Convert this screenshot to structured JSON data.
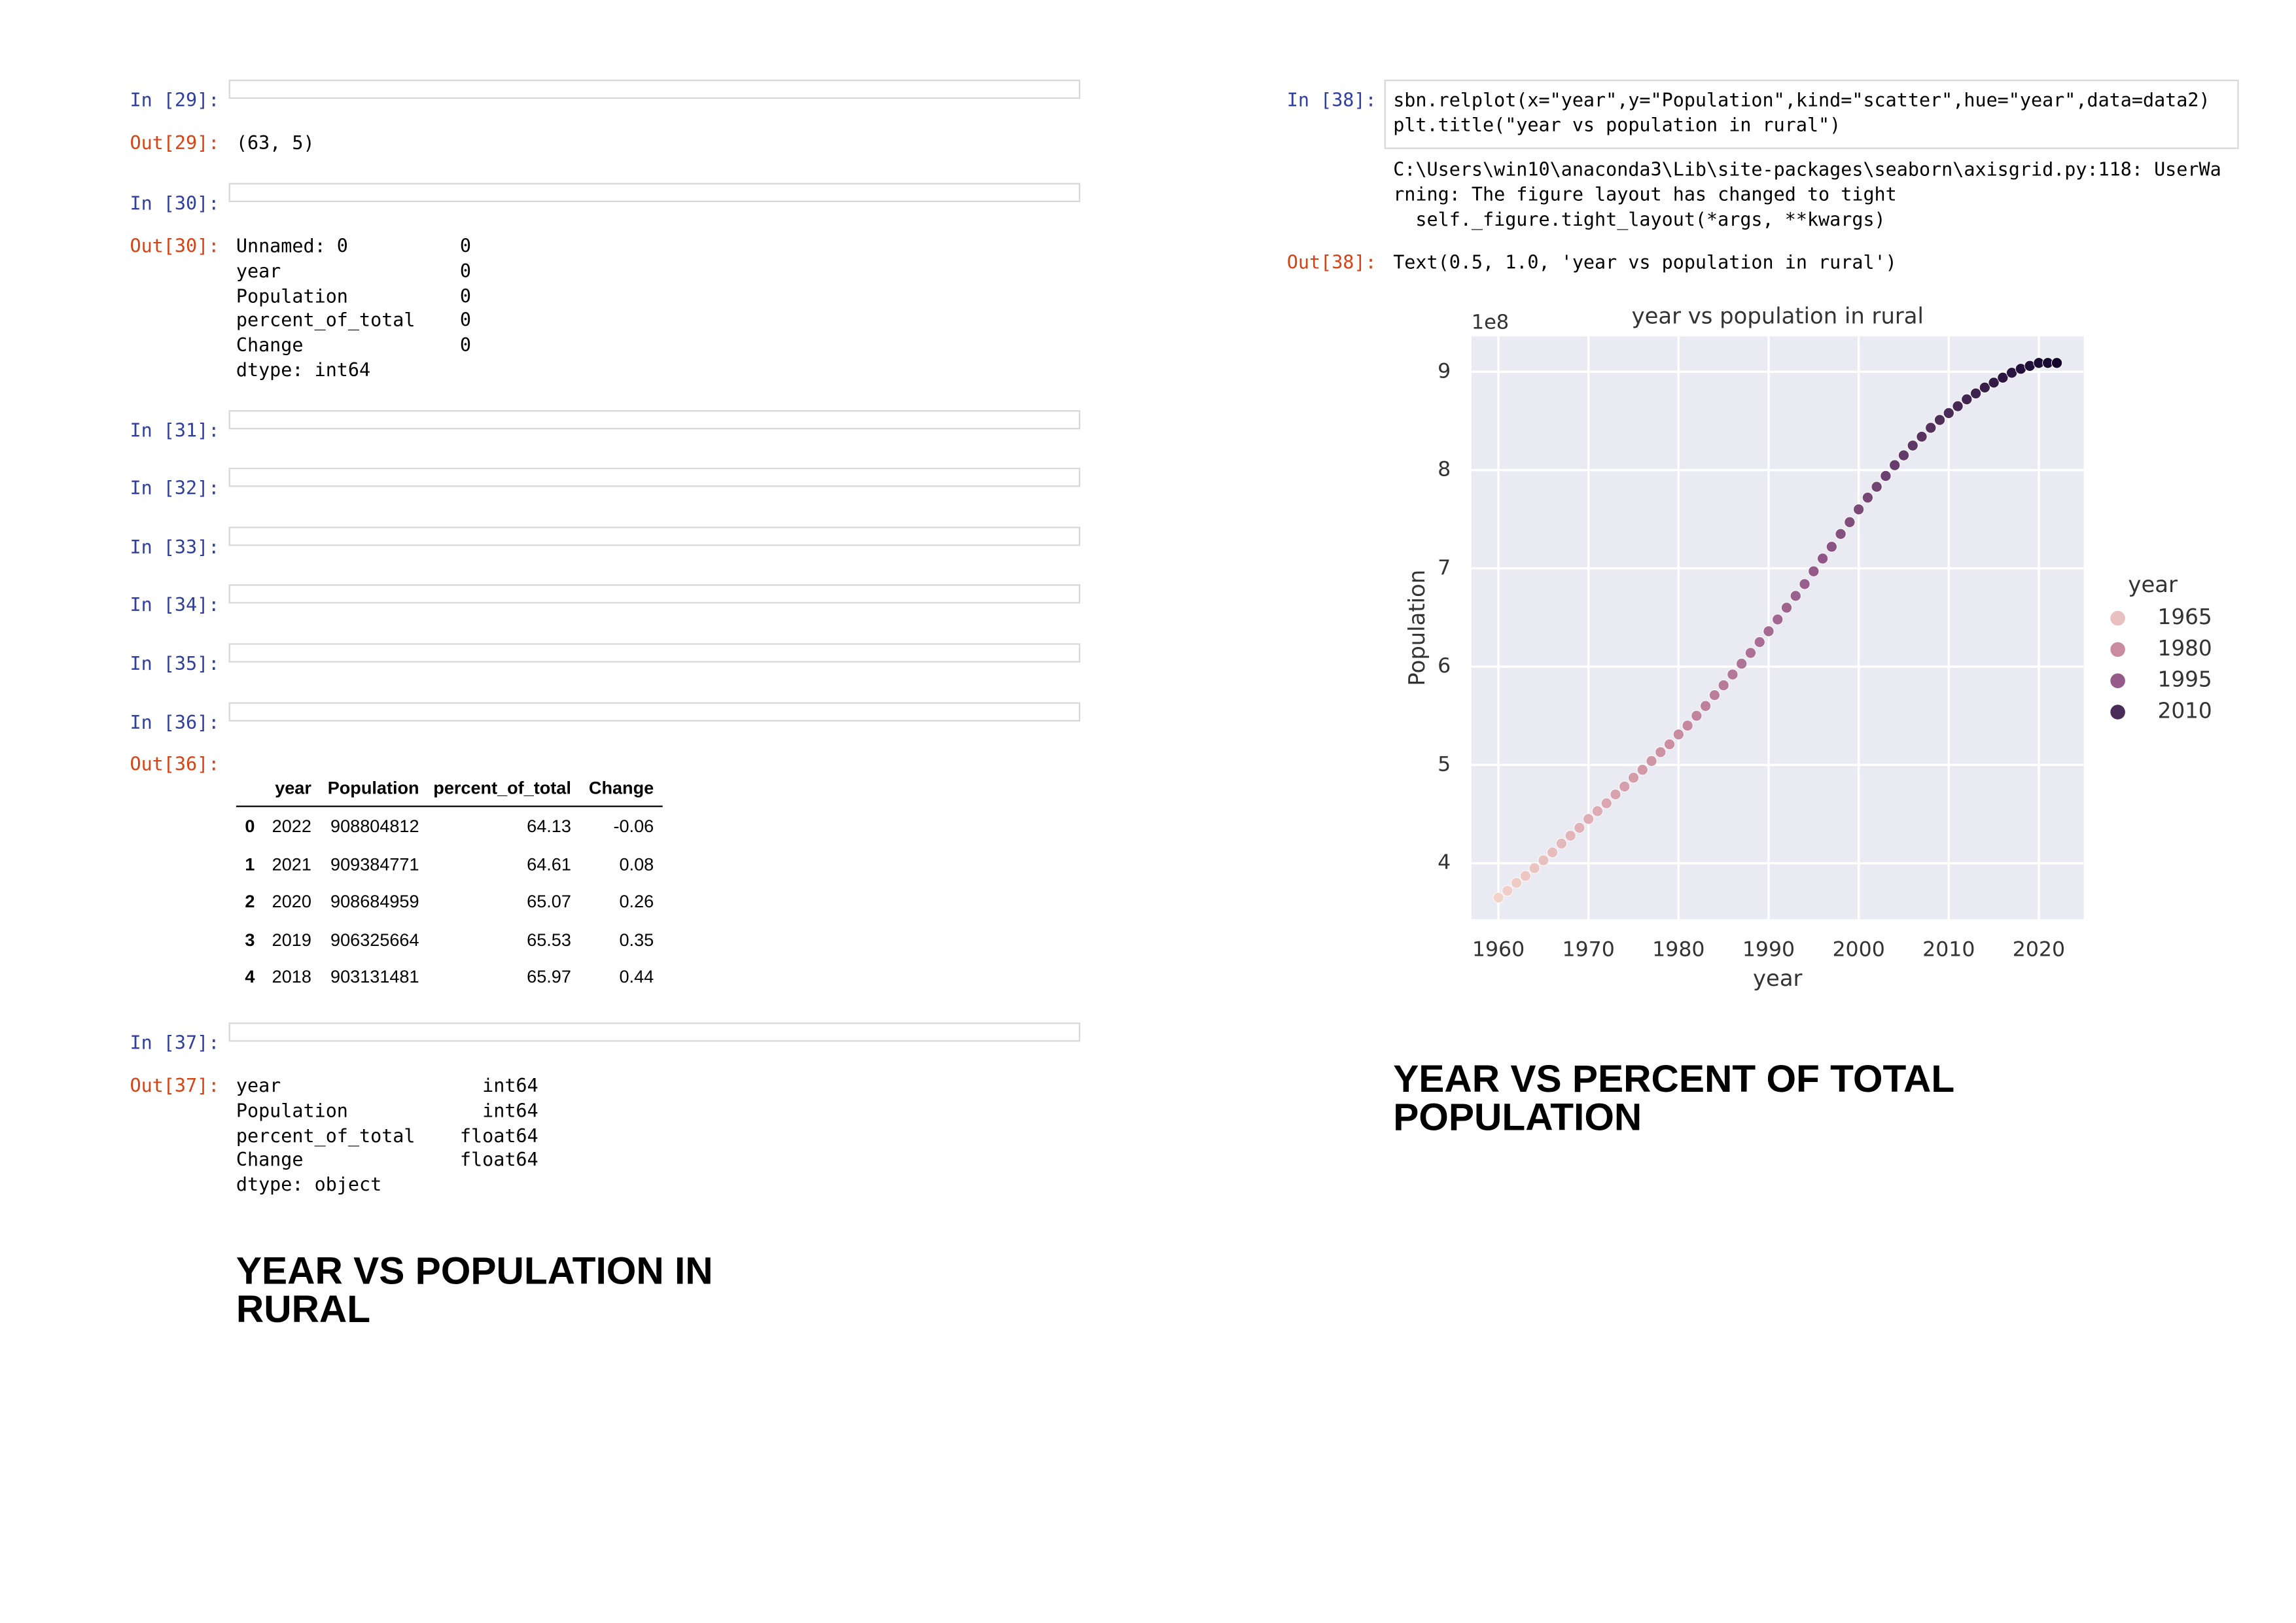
{
  "notebook": {
    "cells": [
      {
        "in": "In [29]:",
        "out": "Out[29]:",
        "output": [
          "(63, 5)"
        ]
      },
      {
        "in": "In [30]:",
        "out": "Out[30]:",
        "output": [
          "Unnamed: 0          0",
          "year                0",
          "Population          0",
          "percent_of_total    0",
          "Change              0",
          "dtype: int64"
        ]
      },
      {
        "in": "In [31]:"
      },
      {
        "in": "In [32]:"
      },
      {
        "in": "In [33]:"
      },
      {
        "in": "In [34]:"
      },
      {
        "in": "In [35]:"
      },
      {
        "in": "In [36]:",
        "out": "Out[36]:"
      },
      {
        "in": "In [37]:",
        "out": "Out[37]:",
        "output": [
          "year                  int64",
          "Population            int64",
          "percent_of_total    float64",
          "Change              float64",
          "dtype: object"
        ]
      },
      {
        "in": "In [38]:",
        "out": "Out[38]:",
        "code": [
          "sbn.relplot(x=\"year\",y=\"Population\",kind=\"scatter\",hue=\"year\",data=data2)",
          "plt.title(\"year vs population in rural\")"
        ],
        "stderr": [
          "C:\\Users\\win10\\anaconda3\\Lib\\site-packages\\seaborn\\axisgrid.py:118: UserWa",
          "rning: The figure layout has changed to tight",
          "  self._figure.tight_layout(*args, **kwargs)"
        ],
        "output": [
          "Text(0.5, 1.0, 'year vs population in rural')"
        ]
      }
    ],
    "table": {
      "header": [
        "year",
        "Population",
        "percent_of_total",
        "Change"
      ],
      "rows": [
        [
          "0",
          "2022",
          "908804812",
          "64.13",
          "-0.06"
        ],
        [
          "1",
          "2021",
          "909384771",
          "64.61",
          "0.08"
        ],
        [
          "2",
          "2020",
          "908684959",
          "65.07",
          "0.26"
        ],
        [
          "3",
          "2019",
          "906325664",
          "65.53",
          "0.35"
        ],
        [
          "4",
          "2018",
          "903131481",
          "65.97",
          "0.44"
        ]
      ]
    },
    "headings": [
      "YEAR VS POPULATION IN RURAL",
      "YEAR VS PERCENT OF TOTAL POPULATION"
    ]
  },
  "chart_data": {
    "type": "scatter",
    "title": "year vs population in rural",
    "x_label": "year",
    "y_label": "Population",
    "y_offset": "1e8",
    "x": [
      1960,
      1961,
      1962,
      1963,
      1964,
      1965,
      1966,
      1967,
      1968,
      1969,
      1970,
      1971,
      1972,
      1973,
      1974,
      1975,
      1976,
      1977,
      1978,
      1979,
      1980,
      1981,
      1982,
      1983,
      1984,
      1985,
      1986,
      1987,
      1988,
      1989,
      1990,
      1991,
      1992,
      1993,
      1994,
      1995,
      1996,
      1997,
      1998,
      1999,
      2000,
      2001,
      2002,
      2003,
      2004,
      2005,
      2006,
      2007,
      2008,
      2009,
      2010,
      2011,
      2012,
      2013,
      2014,
      2015,
      2016,
      2017,
      2018,
      2019,
      2020,
      2021,
      2022
    ],
    "values": [
      3.65,
      3.72,
      3.8,
      3.87,
      3.95,
      4.03,
      4.11,
      4.2,
      4.28,
      4.36,
      4.45,
      4.53,
      4.61,
      4.7,
      4.78,
      4.87,
      4.95,
      5.04,
      5.13,
      5.21,
      5.31,
      5.4,
      5.5,
      5.6,
      5.71,
      5.81,
      5.92,
      6.03,
      6.14,
      6.25,
      6.36,
      6.48,
      6.6,
      6.72,
      6.84,
      6.97,
      7.1,
      7.22,
      7.35,
      7.47,
      7.6,
      7.72,
      7.83,
      7.94,
      8.05,
      8.15,
      8.25,
      8.34,
      8.43,
      8.51,
      8.58,
      8.65,
      8.72,
      8.78,
      8.84,
      8.89,
      8.94,
      8.99,
      9.03,
      9.06,
      9.09,
      9.09,
      9.09
    ],
    "xlim": [
      1957,
      2025
    ],
    "ylim": [
      3.43,
      9.36
    ],
    "xticks": [
      1960,
      1970,
      1980,
      1990,
      2000,
      2010,
      2020
    ],
    "yticks": [
      4,
      5,
      6,
      7,
      8,
      9
    ],
    "grid": true,
    "background": "#eaeaf2",
    "legend": {
      "title": "year",
      "position": "right",
      "entries": [
        {
          "value": 1965,
          "color": "#e8c0bf"
        },
        {
          "value": 1980,
          "color": "#c98ba0"
        },
        {
          "value": 1995,
          "color": "#935a8a"
        },
        {
          "value": 2010,
          "color": "#4b2b57"
        }
      ]
    }
  }
}
